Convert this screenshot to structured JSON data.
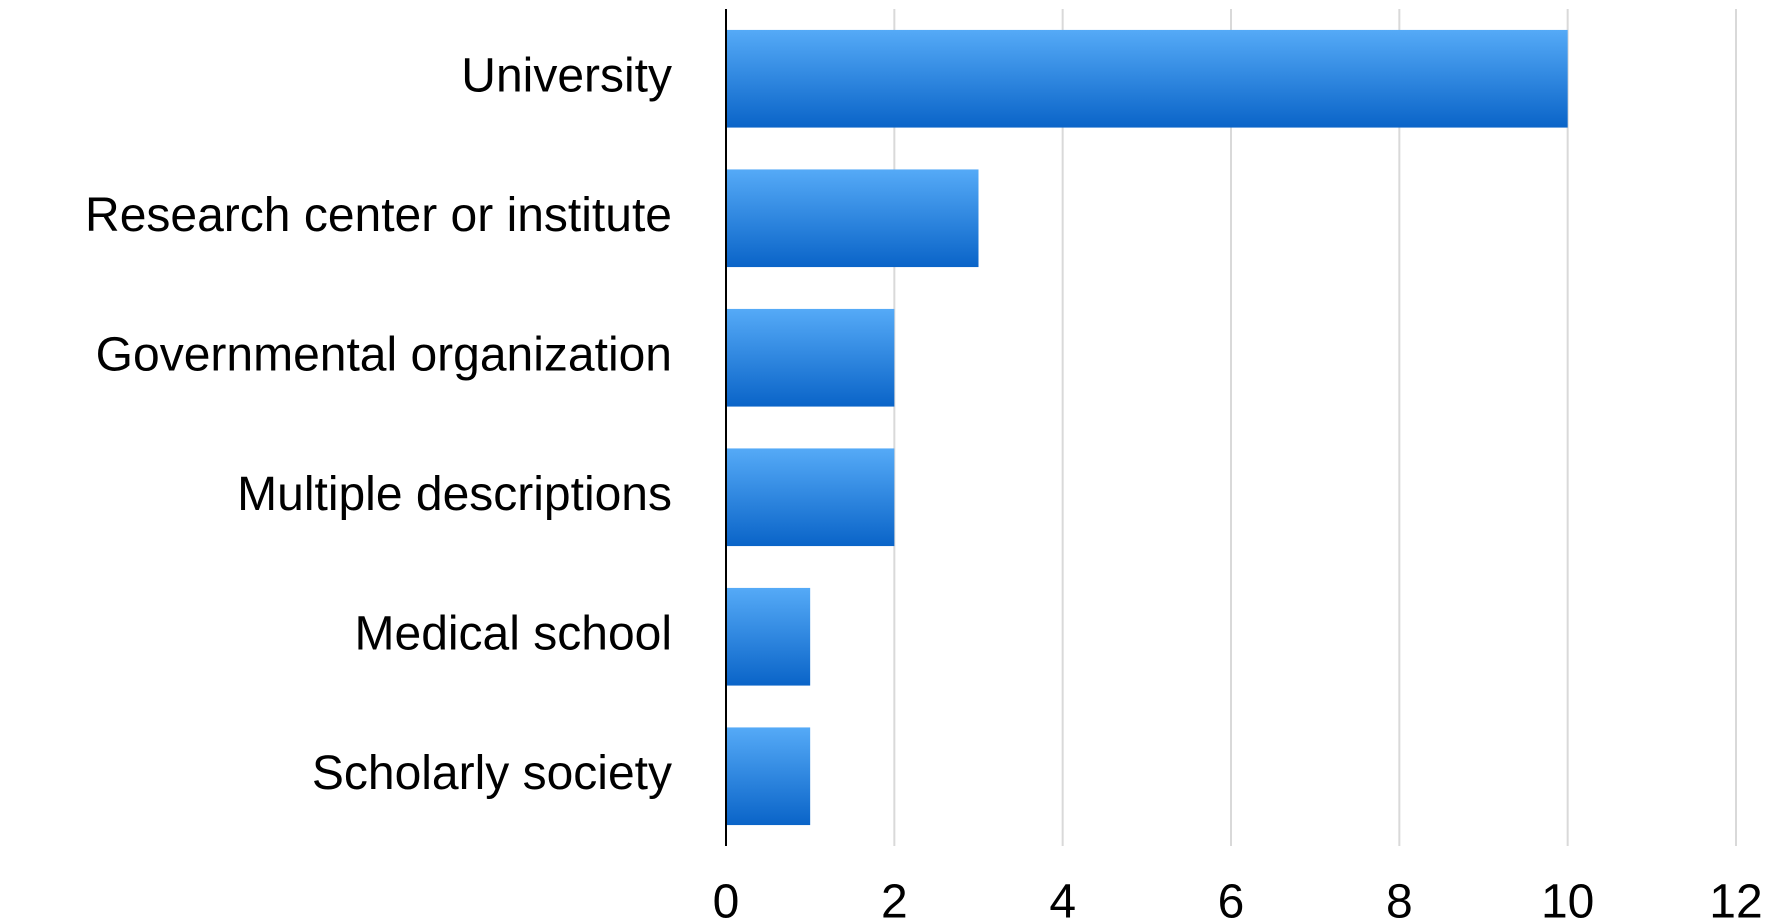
{
  "chart_data": {
    "type": "bar",
    "orientation": "horizontal",
    "categories": [
      "University",
      "Research center or institute",
      "Governmental organization",
      "Multiple descriptions",
      "Medical school",
      "Scholarly society"
    ],
    "values": [
      10,
      3,
      2,
      2,
      1,
      1
    ],
    "color": "#0a64c8",
    "xlim": [
      0,
      12
    ],
    "xticks": [
      0,
      2,
      4,
      6,
      8,
      10,
      12
    ],
    "grid": true
  }
}
